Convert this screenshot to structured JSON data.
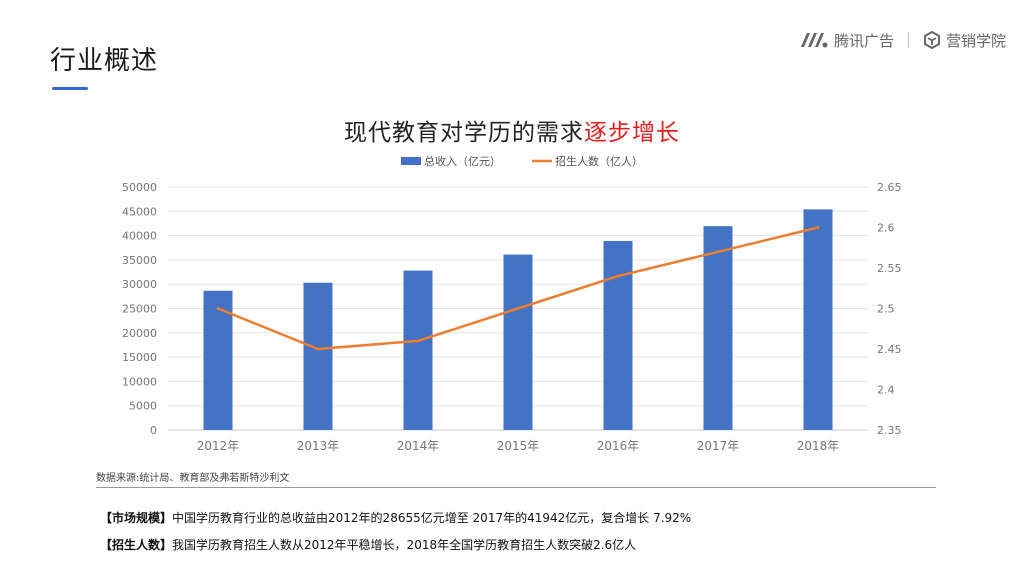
{
  "page": {
    "title": "行业概述"
  },
  "brand": {
    "tencent_ads": "腾讯广告",
    "academy": "营销学院",
    "logo_icon": "tencent-ads-logo",
    "academy_icon": "marketing-academy-logo"
  },
  "chart_title": {
    "prefix": "现代教育对学历的需求",
    "highlight": "逐步增长"
  },
  "colors": {
    "bar": "#4472c4",
    "line": "#ed7d31",
    "highlight": "#e02020",
    "accent": "#2f6bd3"
  },
  "chart_data": {
    "type": "bar",
    "categories": [
      "2012年",
      "2013年",
      "2014年",
      "2015年",
      "2016年",
      "2017年",
      "2018年"
    ],
    "series": [
      {
        "name": "总收入（亿元）",
        "type": "bar",
        "axis": "left",
        "values": [
          28655,
          30300,
          32800,
          36100,
          38900,
          41942,
          45400
        ]
      },
      {
        "name": "招生人数（亿人）",
        "type": "line",
        "axis": "right",
        "values": [
          2.5,
          2.45,
          2.46,
          2.5,
          2.54,
          2.57,
          2.6
        ]
      }
    ],
    "y_left": {
      "min": 0,
      "max": 50000,
      "ticks": [
        "0",
        "5000",
        "10000",
        "15000",
        "20000",
        "25000",
        "30000",
        "35000",
        "40000",
        "45000",
        "50000"
      ]
    },
    "y_right": {
      "min": 2.35,
      "max": 2.65,
      "ticks": [
        "2.35",
        "2.4",
        "2.45",
        "2.5",
        "2.55",
        "2.6",
        "2.65"
      ]
    },
    "grid": true,
    "legend": "top-center"
  },
  "source": "数据来源:统计局、教育部及弗若斯特沙利文",
  "notes": [
    {
      "label": "【市场规模】",
      "text": "中国学历教育行业的总收益由2012年的28655亿元增至 2017年的41942亿元，复合增长 7.92%"
    },
    {
      "label": "【招生人数】",
      "text": "我国学历教育招生人数从2012年平稳增长，2018年全国学历教育招生人数突破2.6亿人"
    }
  ]
}
